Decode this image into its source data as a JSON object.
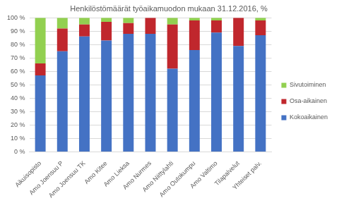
{
  "chart_data": {
    "type": "bar",
    "title": "Henkilöstömäärät työaikamuodon mukaan 31.12.2016, %",
    "categories": [
      "Aikuisopisto",
      "Amo Joensuu P",
      "Amo Joensuu TK",
      "Amo Kitee",
      "Amo Lieksa",
      "Amo Nurmes",
      "Amo Niittylahti",
      "Amo Outokumpu",
      "Amo Valtimo",
      "Tilapalvelut",
      "Yhteiset palv."
    ],
    "series": [
      {
        "name": "Kokoaikainen",
        "color": "#4472c4",
        "values": [
          57,
          75,
          86,
          83,
          88,
          88,
          62,
          76,
          89,
          79,
          87
        ]
      },
      {
        "name": "Osa-aikainen",
        "color": "#c0272d",
        "values": [
          9,
          17,
          9,
          14,
          8,
          12,
          33,
          22,
          9,
          21,
          11
        ]
      },
      {
        "name": "Sivutoiminen",
        "color": "#92d050",
        "values": [
          34,
          8,
          5,
          3,
          4,
          0,
          5,
          2,
          2,
          0,
          2
        ]
      }
    ],
    "stacked": true,
    "ylim": [
      0,
      100
    ],
    "yticks": [
      {
        "value": 0,
        "label": "0 %"
      },
      {
        "value": 10,
        "label": "10 %"
      },
      {
        "value": 20,
        "label": "20 %"
      },
      {
        "value": 30,
        "label": "30 %"
      },
      {
        "value": 40,
        "label": "40 %"
      },
      {
        "value": 50,
        "label": "50 %"
      },
      {
        "value": 60,
        "label": "60 %"
      },
      {
        "value": 70,
        "label": "70 %"
      },
      {
        "value": 80,
        "label": "80 %"
      },
      {
        "value": 90,
        "label": "90 %"
      },
      {
        "value": 100,
        "label": "100 %"
      }
    ],
    "grid": true,
    "legend": "right"
  }
}
